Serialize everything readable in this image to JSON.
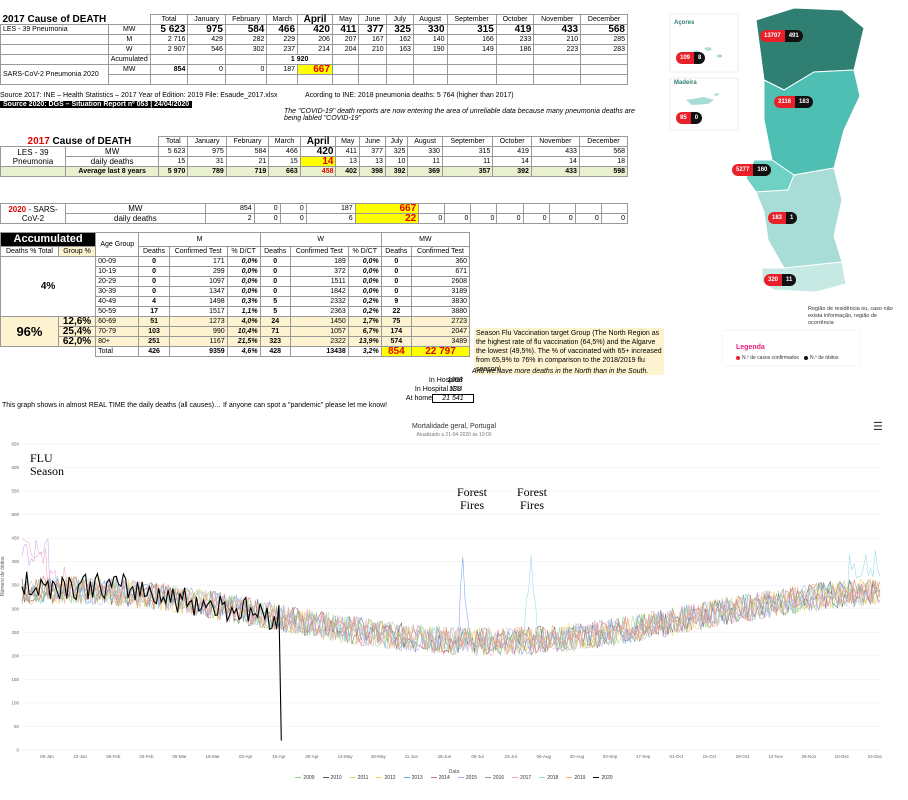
{
  "months": [
    "Total",
    "January",
    "February",
    "March",
    "April",
    "May",
    "June",
    "July",
    "August",
    "September",
    "October",
    "November",
    "December"
  ],
  "table1": {
    "title": "2017 Cause of DEATH",
    "les_label": "LES - 39 Pneumonia",
    "mw_label": "MW",
    "m_label": "M",
    "w_label": "W",
    "mw": [
      "5 623",
      "975",
      "584",
      "466",
      "420",
      "411",
      "377",
      "325",
      "330",
      "315",
      "419",
      "433",
      "568"
    ],
    "m": [
      "2 716",
      "429",
      "282",
      "229",
      "206",
      "207",
      "167",
      "162",
      "140",
      "166",
      "233",
      "210",
      "285"
    ],
    "w": [
      "2 907",
      "546",
      "302",
      "237",
      "214",
      "204",
      "210",
      "163",
      "190",
      "149",
      "186",
      "223",
      "283"
    ],
    "acc_label": "Acumulated",
    "acc_value": "1 920",
    "sars_label": "SARS-CoV-2 Pneumonia 2020",
    "sars_mw": "MW",
    "sars": [
      "854",
      "0",
      "0",
      "187",
      "667"
    ]
  },
  "source1": "Source 2017: INE – Health Statistics – 2017 Year of Edition: 2019 File: Esaude_2017.xlsx",
  "ine_note": "Acording to INE: 2018 pneumonia deaths: 5 764 (higher than 2017)",
  "source2": "Source 2020: DGS – Situation Report nº 053 | 24/04/2020",
  "covid_note": "The \"COVID-19\" death reports are now entering the area of unreliable data because many pneumonia deaths are being labled \"COVID-19\"",
  "table2": {
    "title_year": "2017",
    "title_rest": "Cause of DEATH",
    "les_label": "LES - 39 Pneumonia",
    "mw_label": "MW",
    "daily_label": "daily deaths",
    "avg_label": "Average last 8 years",
    "mw": [
      "5 623",
      "975",
      "584",
      "466",
      "420",
      "411",
      "377",
      "325",
      "330",
      "315",
      "419",
      "433",
      "568"
    ],
    "daily": [
      "15",
      "31",
      "21",
      "15",
      "14",
      "13",
      "13",
      "10",
      "11",
      "11",
      "14",
      "14",
      "18"
    ],
    "avg": [
      "5 970",
      "789",
      "719",
      "663",
      "458",
      "402",
      "398",
      "392",
      "369",
      "357",
      "392",
      "433",
      "598"
    ]
  },
  "table3": {
    "year": "2020",
    "label": "- SARS-CoV-2",
    "mw_label": "MW",
    "daily_label": "daily deaths",
    "mw": [
      "854",
      "0",
      "0",
      "187",
      "667"
    ],
    "daily": [
      "2",
      "0",
      "0",
      "6",
      "22",
      "0",
      "0",
      "0",
      "0",
      "0",
      "0",
      "0",
      "0"
    ]
  },
  "accum": {
    "title": "Accumulated",
    "age_group": "Age Group",
    "deaths_pct_total": "Deaths % Total",
    "group_pct": "Group %",
    "m": "M",
    "w": "W",
    "mw": "MW",
    "sub": [
      "Deaths",
      "Confirmed Test",
      "% D/CT",
      "Deaths",
      "Confirmed Test",
      "% D/CT",
      "Deaths",
      "Confirmed Test"
    ],
    "pct_4": "4%",
    "pct_96": "96%",
    "group_pcts": [
      "12,6%",
      "25,4%",
      "62,0%"
    ],
    "rows": [
      [
        "00-09",
        "0",
        "171",
        "0,0%",
        "0",
        "189",
        "0,0%",
        "0",
        "360"
      ],
      [
        "10-19",
        "0",
        "299",
        "0,0%",
        "0",
        "372",
        "0,0%",
        "0",
        "671"
      ],
      [
        "20-29",
        "0",
        "1097",
        "0,0%",
        "0",
        "1511",
        "0,0%",
        "0",
        "2608"
      ],
      [
        "30-39",
        "0",
        "1347",
        "0,0%",
        "0",
        "1842",
        "0,0%",
        "0",
        "3189"
      ],
      [
        "40-49",
        "4",
        "1498",
        "0,3%",
        "5",
        "2332",
        "0,2%",
        "9",
        "3830"
      ],
      [
        "50-59",
        "17",
        "1517",
        "1,1%",
        "5",
        "2363",
        "0,2%",
        "22",
        "3880"
      ],
      [
        "60-69",
        "51",
        "1273",
        "4,0%",
        "24",
        "1450",
        "1,7%",
        "75",
        "2723"
      ],
      [
        "70-79",
        "103",
        "990",
        "10,4%",
        "71",
        "1057",
        "6,7%",
        "174",
        "2047"
      ],
      [
        "80+",
        "251",
        "1167",
        "21,5%",
        "323",
        "2322",
        "13,9%",
        "574",
        "3489"
      ],
      [
        "Total",
        "426",
        "9359",
        "4,6%",
        "428",
        "13438",
        "3,2%",
        "854",
        "22 797"
      ]
    ],
    "hospital_label": "In Hospital",
    "hospital_value": "1068",
    "icu_label": "In Hospital ICU",
    "icu_value": "188",
    "home_label": "At home",
    "home_value": "21 541"
  },
  "flu_note": "Season Flu Vaccination target Group (The North Region as the highest rate of flu vaccination (64,5%) and the Algarve the lowest (49,5%). The % of vaccinated with 65+ increased from 65,9% to 76% in comparison to the 2018/2019 flu season)",
  "north_note": "And we have more deaths in the North than in the South.",
  "graph_intro": "This graph shows in almost REAL TIME the daily deaths (all causes)… If anyone can spot a \"pandemic\" please let me know!",
  "map": {
    "acores": "Açores",
    "madeira": "Madeira",
    "pins": [
      {
        "conf": "13707",
        "dead": "491"
      },
      {
        "conf": "109",
        "dead": "8"
      },
      {
        "conf": "3116",
        "dead": "183"
      },
      {
        "conf": "85",
        "dead": "0"
      },
      {
        "conf": "5277",
        "dead": "160"
      },
      {
        "conf": "183",
        "dead": "1"
      },
      {
        "conf": "320",
        "dead": "11"
      }
    ],
    "region_note": "Região de residência ou, caso não exista informação, região de ocorrência",
    "legend_title": "Legenda",
    "legend_conf": "N.º de casos confirmados",
    "legend_dead": "N.º de óbitos",
    "colors": {
      "north": "#2f7f73",
      "center": "#4fbfb3",
      "lisbon": "#6fd0c4",
      "alentejo": "#a8dcd6",
      "algarve": "#c6e9e4",
      "legend": "#e8207a"
    }
  },
  "chart_data": {
    "type": "line",
    "title": "Mortalidade geral, Portugal",
    "subtitle": "Atualizado a 21-04-2020 às 10:00",
    "xlabel": "Data",
    "ylabel": "Número de óbitos",
    "ylim": [
      0,
      650
    ],
    "yticks": [
      "0",
      "50",
      "100",
      "150",
      "200",
      "250",
      "300",
      "350",
      "400",
      "450",
      "500",
      "550",
      "600",
      "650"
    ],
    "xticks": [
      "09-Jan",
      "23-Jan",
      "06-Feb",
      "20-Feb",
      "05-Mar",
      "19-Mar",
      "02-Apr",
      "16-Apr",
      "30-Apr",
      "14-May",
      "28-May",
      "11-Jun",
      "25-Jun",
      "09-Jul",
      "23-Jul",
      "06-Aug",
      "20-Aug",
      "03-Sep",
      "17-Sep",
      "01-Oct",
      "15-Oct",
      "29-Oct",
      "12-Nov",
      "26-Nov",
      "10-Dec",
      "24-Dec"
    ],
    "series": [
      "2009",
      "2010",
      "2011",
      "2012",
      "2013",
      "2014",
      "2015",
      "2016",
      "2017",
      "2018",
      "2019",
      "2020"
    ],
    "series_colors": [
      "#7fd67f",
      "#555555",
      "#b7e36b",
      "#f4d35e",
      "#6f9fe0",
      "#e07070",
      "#c6a3e6",
      "#9a9a9a",
      "#f2a0c0",
      "#8fd3e8",
      "#f0b070",
      "#000000"
    ],
    "annotations": [
      "FLU Season",
      "Forest Fires",
      "Forest Fires"
    ],
    "menu_icon": "hamburger-menu-icon"
  }
}
